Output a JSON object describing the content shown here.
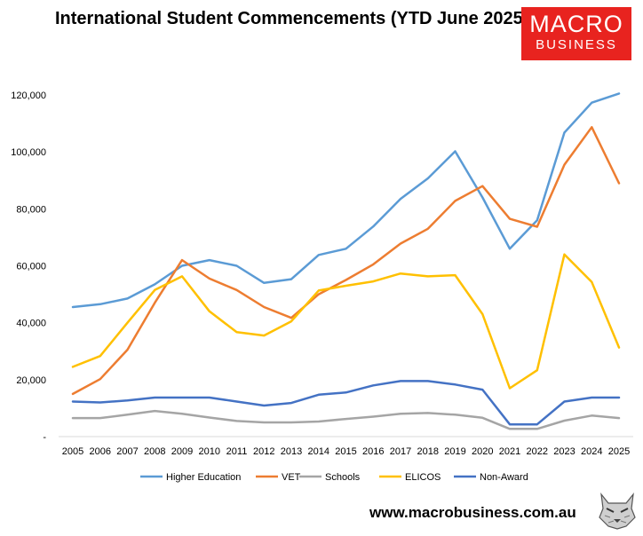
{
  "header": {
    "title": "International Student Commencements (YTD June 2025)"
  },
  "brand": {
    "logo_line1": "MACRO",
    "logo_line2": "BUSINESS",
    "logo_color": "#e8231f",
    "url": "www.macrobusiness.com.au",
    "mascot_icon": "wolf-icon"
  },
  "chart_data": {
    "type": "line",
    "title": "International Student Commencements (YTD June 2025)",
    "xlabel": "",
    "ylabel": "",
    "ylim": [
      0,
      120000
    ],
    "yticks": [
      "-",
      "20,000",
      "40,000",
      "60,000",
      "80,000",
      "100,000",
      "120,000"
    ],
    "categories": [
      "2005",
      "2006",
      "2007",
      "2008",
      "2009",
      "2010",
      "2011",
      "2012",
      "2013",
      "2014",
      "2015",
      "2016",
      "2017",
      "2018",
      "2019",
      "2020",
      "2021",
      "2022",
      "2023",
      "2024",
      "2025"
    ],
    "grid": false,
    "legend": "bottom",
    "series": [
      {
        "name": "Higher Education",
        "color": "#5b9bd5",
        "values": [
          45500,
          46500,
          48500,
          53500,
          60000,
          62000,
          60000,
          54000,
          55300,
          63800,
          66000,
          73800,
          83500,
          90700,
          100200,
          84000,
          66000,
          76000,
          106800,
          117300,
          120500
        ]
      },
      {
        "name": "VET",
        "color": "#ed7d31",
        "values": [
          15000,
          20200,
          30500,
          47000,
          62000,
          55500,
          51500,
          45500,
          41700,
          50000,
          55000,
          60500,
          67800,
          73000,
          82800,
          88000,
          76500,
          73700,
          95500,
          108700,
          89000
        ]
      },
      {
        "name": "Schools",
        "color": "#a5a5a5",
        "values": [
          6500,
          6500,
          7700,
          9000,
          8000,
          6700,
          5500,
          5000,
          5000,
          5300,
          6200,
          7000,
          8000,
          8300,
          7700,
          6600,
          2700,
          2700,
          5600,
          7400,
          6500
        ]
      },
      {
        "name": "ELICOS",
        "color": "#ffc000",
        "values": [
          24500,
          28300,
          40000,
          51500,
          56300,
          44000,
          36700,
          35500,
          40500,
          51300,
          53000,
          54500,
          57300,
          56300,
          56700,
          43000,
          17000,
          23300,
          64000,
          54300,
          31300
        ]
      },
      {
        "name": "Non-Award",
        "color": "#4472c4",
        "values": [
          12300,
          12000,
          12700,
          13700,
          13700,
          13700,
          12300,
          10900,
          11800,
          14700,
          15500,
          18000,
          19500,
          19500,
          18300,
          16500,
          4300,
          4300,
          12300,
          13700,
          13700
        ]
      }
    ]
  }
}
